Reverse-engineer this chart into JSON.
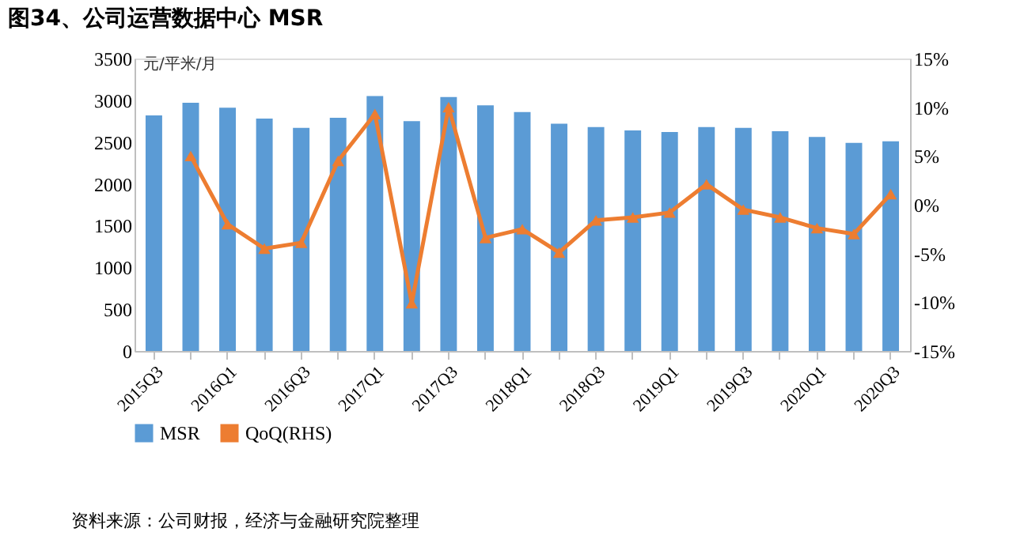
{
  "chart_data": {
    "type": "bar",
    "title": "图34、公司运营数据中心 MSR",
    "ylabel": "元/平米/月",
    "categories": [
      "2015Q3",
      null,
      "2016Q1",
      null,
      "2016Q3",
      null,
      "2017Q1",
      null,
      "2017Q3",
      null,
      "2018Q1",
      null,
      "2018Q3",
      null,
      "2019Q1",
      null,
      "2019Q3",
      null,
      "2020Q1",
      null,
      "2020Q3"
    ],
    "series": [
      {
        "name": "MSR",
        "color": "#5b9bd5",
        "values": [
          2820,
          2970,
          2910,
          2780,
          2670,
          2790,
          3050,
          2750,
          3040,
          2940,
          2860,
          2720,
          2680,
          2640,
          2620,
          2680,
          2670,
          2630,
          2560,
          2490,
          2510
        ]
      },
      {
        "name": "QoQ(RHS)",
        "type": "line",
        "axis": "y2",
        "color": "#ed7d31",
        "marker": "triangle",
        "values": [
          null,
          5.0,
          -2.0,
          -4.5,
          -3.9,
          4.5,
          9.3,
          -10.1,
          10.0,
          -3.4,
          -2.5,
          -4.9,
          -1.6,
          -1.3,
          -0.8,
          2.1,
          -0.5,
          -1.3,
          -2.4,
          -3.0,
          1.1
        ]
      }
    ],
    "ylim": [
      0,
      3500
    ],
    "yticks": [
      0,
      500,
      1000,
      1500,
      2000,
      2500,
      3000,
      3500
    ],
    "y2lim": [
      -15,
      15
    ],
    "y2ticks": [
      {
        "value": -15,
        "label": "-15%"
      },
      {
        "value": -10,
        "label": "-10%"
      },
      {
        "value": -5,
        "label": "-5%"
      },
      {
        "value": 0,
        "label": "0%"
      },
      {
        "value": 5,
        "label": "5%"
      },
      {
        "value": 10,
        "label": "10%"
      },
      {
        "value": 15,
        "label": "15%"
      }
    ],
    "grid": false,
    "legend": "bottom",
    "annotations": [
      "资料来源：公司财报，经济与金融研究院整理"
    ]
  }
}
